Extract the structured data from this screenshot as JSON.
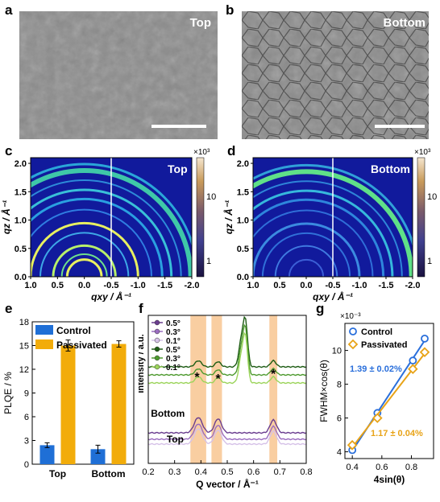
{
  "panels": {
    "a": {
      "letter": "a",
      "label": "Top"
    },
    "b": {
      "letter": "b",
      "label": "Bottom"
    },
    "c": {
      "letter": "c",
      "label": "Top",
      "cbar_exp": "×10³",
      "cbar_ticks": [
        "10",
        "1"
      ],
      "xticks": [
        "1.0",
        "0.5",
        "0.0",
        "-0.5",
        "-1.0",
        "-1.5",
        "-2.0"
      ],
      "yticks": [
        "2.0",
        "1.5",
        "1.0",
        "0.5",
        "0.0"
      ],
      "xlabel": "qxy / Å⁻¹",
      "ylabel": "qz / Å⁻¹"
    },
    "d": {
      "letter": "d",
      "label": "Bottom",
      "cbar_exp": "×10³",
      "cbar_ticks": [
        "10",
        "1"
      ],
      "xticks": [
        "1.0",
        "0.5",
        "0.0",
        "-0.5",
        "-1.0",
        "-1.5",
        "-2.0"
      ],
      "yticks": [
        "2.0",
        "1.5",
        "1.0",
        "0.5",
        "0.0"
      ],
      "xlabel": "qxy / Å⁻¹",
      "ylabel": "qz / Å⁻¹"
    },
    "e": {
      "letter": "e"
    },
    "f": {
      "letter": "f"
    },
    "g": {
      "letter": "g"
    }
  },
  "chart_data": [
    {
      "panel": "e",
      "type": "bar",
      "categories": [
        "Top",
        "Bottom"
      ],
      "series": [
        {
          "name": "Control",
          "values": [
            2.4,
            1.9
          ],
          "errors": [
            0.3,
            0.5
          ],
          "color": "#1f6fd6"
        },
        {
          "name": "Passivated",
          "values": [
            15.0,
            15.2
          ],
          "errors": [
            0.7,
            0.4
          ],
          "color": "#f2ac0a"
        }
      ],
      "ylabel": "PLQE / %",
      "ylim": [
        0,
        18
      ],
      "yticks": [
        0,
        3,
        6,
        9,
        12,
        15,
        18
      ],
      "legend": "top-left"
    },
    {
      "panel": "f",
      "type": "line",
      "xlabel": "Q vector / Å⁻¹",
      "ylabel": "Intensity / a.u.",
      "xlim": [
        0.2,
        0.8
      ],
      "xticks": [
        "0.2",
        "0.3",
        "0.4",
        "0.5",
        "0.6",
        "0.7",
        "0.8"
      ],
      "groups": [
        {
          "name": "Bottom"
        },
        {
          "name": "Top"
        }
      ],
      "legend": [
        "0.5°",
        "0.3°",
        "0.1°",
        "0.5°",
        "0.3°",
        "0.1°"
      ],
      "legend_colors": [
        "#6a3d8f",
        "#9b6dc0",
        "#d6c2e8",
        "#1e5c14",
        "#4e9a2f",
        "#9bd45a"
      ],
      "highlight_bands": [
        [
          0.36,
          0.42
        ],
        [
          0.44,
          0.48
        ],
        [
          0.66,
          0.69
        ]
      ],
      "asterisks": [
        0.385,
        0.465,
        0.675
      ],
      "asterisk_symbol": "*"
    },
    {
      "panel": "g",
      "type": "scatter",
      "xlabel": "4sin(θ)",
      "ylabel": "FWHM×cos(θ)",
      "y_exponent": "×10⁻³",
      "xlim": [
        0.35,
        0.95
      ],
      "ylim": [
        3.6,
        11.6
      ],
      "xticks": [
        "0.4",
        "0.6",
        "0.8"
      ],
      "yticks": [
        "4",
        "6",
        "8",
        "10"
      ],
      "series": [
        {
          "name": "Control",
          "x": [
            0.4,
            0.57,
            0.81,
            0.89
          ],
          "y": [
            4.1,
            6.3,
            9.4,
            10.7
          ],
          "marker": "circle",
          "color": "#2a6fdb",
          "fit_label": "1.39 ± 0.02%"
        },
        {
          "name": "Passivated",
          "x": [
            0.4,
            0.57,
            0.81,
            0.89
          ],
          "y": [
            4.4,
            6.0,
            8.9,
            9.9
          ],
          "marker": "diamond",
          "color": "#e8a317",
          "fit_label": "1.17 ± 0.04%"
        }
      ],
      "legend": "top-left"
    }
  ]
}
